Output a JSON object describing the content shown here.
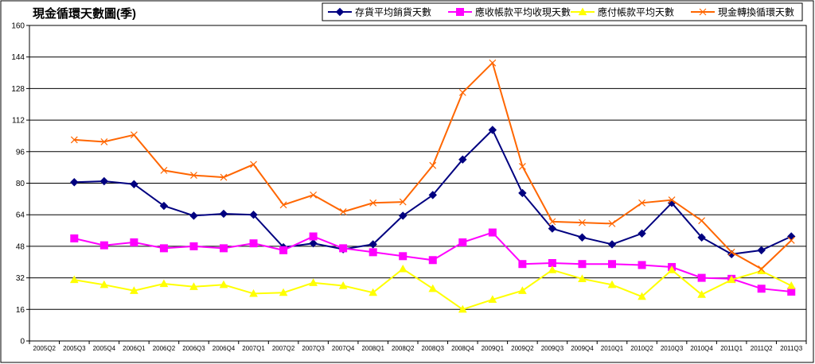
{
  "chart_data": {
    "type": "line",
    "title": "現金循環天數圖(季)",
    "xlabel": "",
    "ylabel": "",
    "ylim": [
      0,
      160
    ],
    "yticks": [
      0,
      16,
      32,
      48,
      64,
      80,
      96,
      112,
      128,
      144,
      160
    ],
    "grid": true,
    "legend_position": "top-right",
    "categories": [
      "2005Q2",
      "2005Q3",
      "2005Q4",
      "2006Q1",
      "2006Q2",
      "2006Q3",
      "2006Q4",
      "2007Q1",
      "2007Q2",
      "2007Q3",
      "2007Q4",
      "2008Q1",
      "2008Q2",
      "2008Q3",
      "2008Q4",
      "2009Q1",
      "2009Q2",
      "2009Q3",
      "2009Q4",
      "2010Q1",
      "2010Q2",
      "2010Q3",
      "2010Q4",
      "2011Q1",
      "2011Q2",
      "2011Q3"
    ],
    "series": [
      {
        "name": "存貨平均銷貨天數",
        "color": "#000080",
        "marker": "diamond",
        "values": [
          null,
          80.5,
          81,
          79.5,
          68.5,
          63.5,
          64.5,
          64,
          47.5,
          49.5,
          46.5,
          49,
          63.5,
          74,
          92,
          107,
          75,
          57,
          52.5,
          49,
          54.5,
          70,
          52.5,
          44,
          46,
          53
        ]
      },
      {
        "name": "應收帳款平均收現天數",
        "color": "#ff00ff",
        "marker": "square",
        "values": [
          null,
          52,
          48.5,
          50,
          47,
          48,
          47,
          49.5,
          46,
          53,
          47,
          45,
          43,
          41,
          50,
          55,
          39,
          39.5,
          39,
          39,
          38.5,
          37.5,
          32,
          31.5,
          26.5,
          25
        ]
      },
      {
        "name": "應付帳款平均天數",
        "color": "#ffff00",
        "marker": "triangle",
        "values": [
          null,
          31,
          28.5,
          25.5,
          29,
          27.5,
          28.5,
          24,
          24.5,
          29.5,
          28,
          24.5,
          36.5,
          26.5,
          16,
          21,
          25.5,
          36,
          31.5,
          28.5,
          22.5,
          36,
          23.5,
          31,
          35.5,
          28
        ]
      },
      {
        "name": "現金轉換循環天數",
        "color": "#ff6600",
        "marker": "cross",
        "values": [
          null,
          102,
          101,
          104.5,
          86.5,
          84,
          83,
          89.5,
          69,
          74,
          65.5,
          70,
          70.5,
          89,
          126,
          141,
          88.5,
          60.5,
          60,
          59.5,
          70,
          71.5,
          61,
          45,
          36.5,
          51
        ]
      }
    ]
  }
}
